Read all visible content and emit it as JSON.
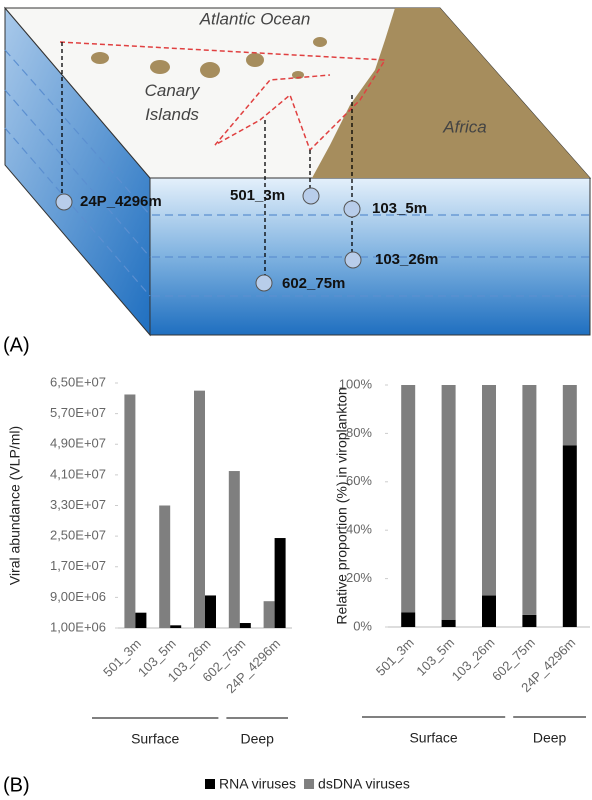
{
  "panel_a": {
    "label": "(A)",
    "map_labels": [
      "Atlantic Ocean",
      "Canary Islands",
      "Africa"
    ],
    "stations": [
      "24P_4296m",
      "501_3m",
      "103_5m",
      "103_26m",
      "602_75m"
    ]
  },
  "panel_b": {
    "label": "(B)"
  },
  "chart_data": [
    {
      "type": "bar",
      "y_label": "Viral abundance (VLP/ml)",
      "categories": [
        "501_3m",
        "103_5m",
        "103_26m",
        "602_75m",
        "24P_4296m"
      ],
      "group_labels": [
        "Surface",
        "Deep"
      ],
      "series": [
        {
          "color": "#7f7f7f",
          "values": [
            62000000,
            33000000,
            63000000,
            42000000,
            8000000
          ]
        },
        {
          "color": "#000000",
          "values": [
            5000000,
            1700000,
            9500000,
            2300000,
            24500000
          ]
        }
      ],
      "ylim": [
        1000000,
        65000000
      ],
      "yticks": [
        {
          "value": 1000000,
          "label": "1,00E+06"
        },
        {
          "value": 9000000,
          "label": "9,00E+06"
        },
        {
          "value": 17000000,
          "label": "1,70E+07"
        },
        {
          "value": 25000000,
          "label": "2,50E+07"
        },
        {
          "value": 33000000,
          "label": "3,30E+07"
        },
        {
          "value": 41000000,
          "label": "4,10E+07"
        },
        {
          "value": 49000000,
          "label": "4,90E+07"
        },
        {
          "value": 57000000,
          "label": "5,70E+07"
        },
        {
          "value": 65000000,
          "label": "6,50E+07"
        }
      ],
      "grid": false,
      "stacked": false
    },
    {
      "type": "bar",
      "y_label": "Relative proportion (%) in viroplankton",
      "categories": [
        "501_3m",
        "103_5m",
        "103_26m",
        "602_75m",
        "24P_4296m"
      ],
      "group_labels": [
        "Surface",
        "Deep"
      ],
      "series": [
        {
          "name": "RNA viruses",
          "color": "#000000",
          "values": [
            6,
            3,
            13,
            5,
            75
          ]
        },
        {
          "name": "dsDNA viruses",
          "color": "#7f7f7f",
          "values": [
            94,
            97,
            87,
            95,
            25
          ]
        }
      ],
      "ylim": [
        0,
        100
      ],
      "yticks": [
        {
          "value": 0,
          "label": "0%"
        },
        {
          "value": 20,
          "label": "20%"
        },
        {
          "value": 40,
          "label": "40%"
        },
        {
          "value": 60,
          "label": "60%"
        },
        {
          "value": 80,
          "label": "80%"
        },
        {
          "value": 100,
          "label": "100%"
        }
      ],
      "grid": false,
      "stacked": true
    }
  ]
}
